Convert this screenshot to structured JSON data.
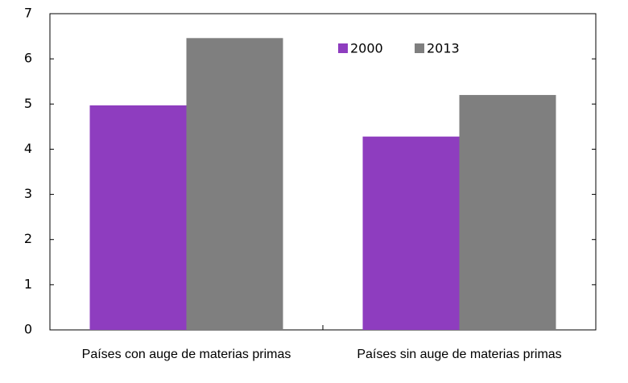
{
  "chart_data": {
    "type": "bar",
    "categories": [
      "Países con auge de materias primas",
      "Países sin auge de materias primas"
    ],
    "series": [
      {
        "name": "2000",
        "color": "#8e3dbf",
        "values": [
          4.97,
          4.28
        ]
      },
      {
        "name": "2013",
        "color": "#7f7f7f",
        "values": [
          6.46,
          5.2
        ]
      }
    ],
    "ylim": [
      0,
      7
    ],
    "yticks": [
      0,
      1,
      2,
      3,
      4,
      5,
      6,
      7
    ],
    "legend": "top-right"
  }
}
